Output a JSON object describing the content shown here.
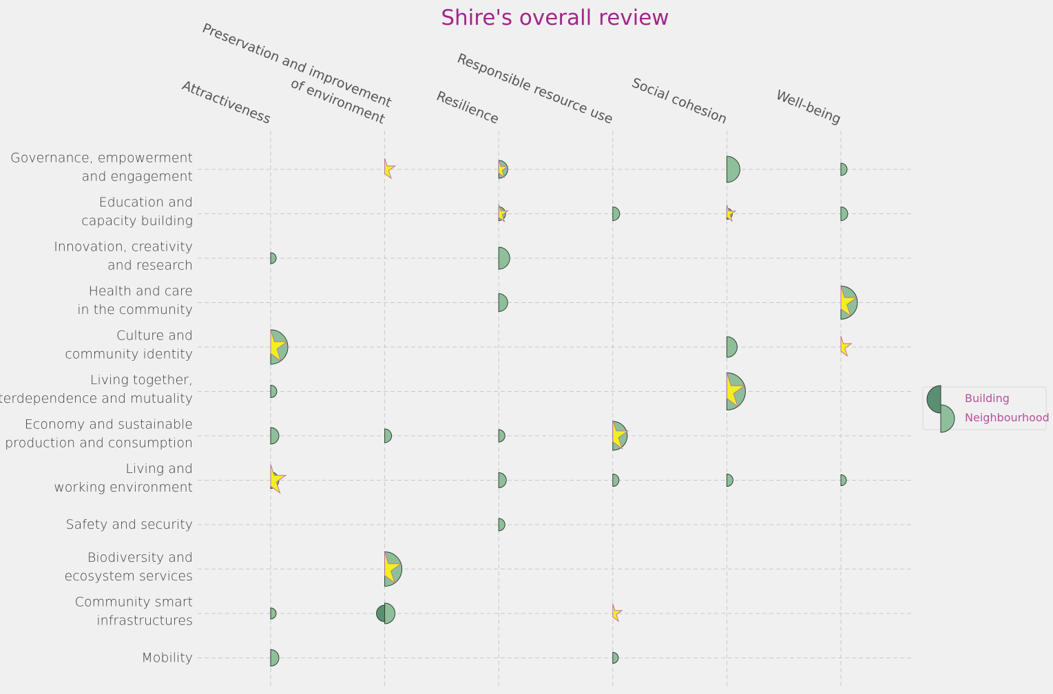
{
  "chart_data": {
    "type": "scatter",
    "title": "Shire's overall review",
    "columns": [
      [
        "Attractiveness"
      ],
      [
        "Preservation and improvement",
        "of environment"
      ],
      [
        "Resilience"
      ],
      [
        "Responsible resource use"
      ],
      [
        "Social cohesion"
      ],
      [
        "Well-being"
      ]
    ],
    "rows": [
      [
        "Governance, empowerment",
        "and engagement"
      ],
      [
        "Education and",
        "capacity building"
      ],
      [
        "Innovation, creativity",
        "and research"
      ],
      [
        "Health and care",
        "in the community"
      ],
      [
        "Culture and",
        "community identity"
      ],
      [
        "Living together,",
        "interdependence and mutuality"
      ],
      [
        "Economy and sustainable",
        "production and consumption"
      ],
      [
        "Living and",
        "working environment"
      ],
      [
        "Safety and security"
      ],
      [
        "Biodiversity and",
        "ecosystem services"
      ],
      [
        "Community smart",
        "infrastructures"
      ],
      [
        "Mobility"
      ]
    ],
    "legend": {
      "position": "right",
      "entries": [
        "Building",
        "Neighbourhood"
      ]
    },
    "colors": {
      "building": "#5a8f73",
      "neighbourhood": "#8fbf9a",
      "star": "#f0f020",
      "star_edge": "#c070a0",
      "title": "#a3268a"
    },
    "grid": true,
    "marker_size_note_units": "relative",
    "points": [
      {
        "row": 0,
        "col": 1,
        "neighbourhood": 0,
        "building": 0,
        "star": 16
      },
      {
        "row": 0,
        "col": 2,
        "neighbourhood": 13,
        "building": 0,
        "star": 14
      },
      {
        "row": 0,
        "col": 4,
        "neighbourhood": 19,
        "building": 0,
        "star": 0
      },
      {
        "row": 0,
        "col": 5,
        "neighbourhood": 9,
        "building": 0,
        "star": 0
      },
      {
        "row": 1,
        "col": 2,
        "neighbourhood": 10,
        "building": 0,
        "star": 14
      },
      {
        "row": 1,
        "col": 3,
        "neighbourhood": 10,
        "building": 0,
        "star": 0
      },
      {
        "row": 1,
        "col": 4,
        "neighbourhood": 8,
        "building": 0,
        "star": 13
      },
      {
        "row": 1,
        "col": 5,
        "neighbourhood": 10,
        "building": 0,
        "star": 0
      },
      {
        "row": 2,
        "col": 0,
        "neighbourhood": 8,
        "building": 0,
        "star": 0
      },
      {
        "row": 2,
        "col": 2,
        "neighbourhood": 16,
        "building": 0,
        "star": 0
      },
      {
        "row": 3,
        "col": 2,
        "neighbourhood": 13,
        "building": 0,
        "star": 0
      },
      {
        "row": 3,
        "col": 5,
        "neighbourhood": 24,
        "building": 0,
        "star": 24
      },
      {
        "row": 4,
        "col": 0,
        "neighbourhood": 25,
        "building": 0,
        "star": 25
      },
      {
        "row": 4,
        "col": 4,
        "neighbourhood": 15,
        "building": 0,
        "star": 0
      },
      {
        "row": 4,
        "col": 5,
        "neighbourhood": 0,
        "building": 0,
        "star": 16
      },
      {
        "row": 5,
        "col": 0,
        "neighbourhood": 9,
        "building": 0,
        "star": 0
      },
      {
        "row": 5,
        "col": 4,
        "neighbourhood": 27,
        "building": 0,
        "star": 27
      },
      {
        "row": 6,
        "col": 0,
        "neighbourhood": 12,
        "building": 0,
        "star": 0
      },
      {
        "row": 6,
        "col": 1,
        "neighbourhood": 10,
        "building": 0,
        "star": 0
      },
      {
        "row": 6,
        "col": 2,
        "neighbourhood": 9,
        "building": 0,
        "star": 0
      },
      {
        "row": 6,
        "col": 3,
        "neighbourhood": 21,
        "building": 0,
        "star": 23
      },
      {
        "row": 7,
        "col": 0,
        "neighbourhood": 12,
        "building": 0,
        "star": 23
      },
      {
        "row": 7,
        "col": 2,
        "neighbourhood": 11,
        "building": 0,
        "star": 0
      },
      {
        "row": 7,
        "col": 3,
        "neighbourhood": 9,
        "building": 0,
        "star": 0
      },
      {
        "row": 7,
        "col": 4,
        "neighbourhood": 9,
        "building": 0,
        "star": 0
      },
      {
        "row": 7,
        "col": 5,
        "neighbourhood": 8,
        "building": 0,
        "star": 0
      },
      {
        "row": 8,
        "col": 2,
        "neighbourhood": 9,
        "building": 0,
        "star": 0
      },
      {
        "row": 9,
        "col": 1,
        "neighbourhood": 25,
        "building": 0,
        "star": 25
      },
      {
        "row": 10,
        "col": 0,
        "neighbourhood": 8,
        "building": 0,
        "star": 0
      },
      {
        "row": 10,
        "col": 1,
        "neighbourhood": 15,
        "building": 12,
        "star": 0
      },
      {
        "row": 10,
        "col": 3,
        "neighbourhood": 0,
        "building": 0,
        "star": 14
      },
      {
        "row": 11,
        "col": 0,
        "neighbourhood": 12,
        "building": 0,
        "star": 0
      },
      {
        "row": 11,
        "col": 3,
        "neighbourhood": 8,
        "building": 0,
        "star": 0
      }
    ]
  }
}
